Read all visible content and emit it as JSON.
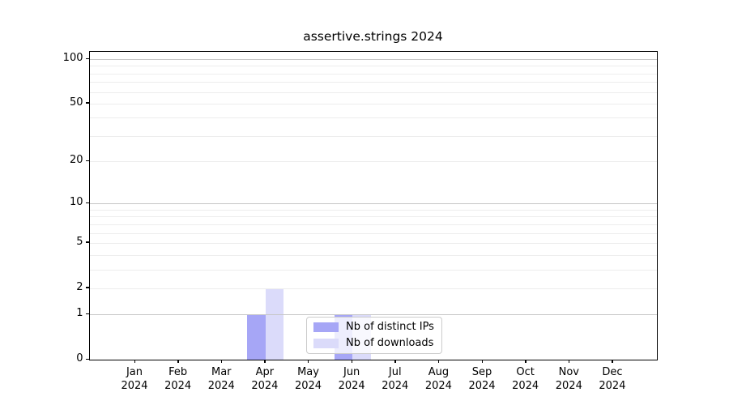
{
  "title": "assertive.strings 2024",
  "chart_data": {
    "type": "bar",
    "title": "assertive.strings 2024",
    "categories": [
      "Jan 2024",
      "Feb 2024",
      "Mar 2024",
      "Apr 2024",
      "May 2024",
      "Jun 2024",
      "Jul 2024",
      "Aug 2024",
      "Sep 2024",
      "Oct 2024",
      "Nov 2024",
      "Dec 2024"
    ],
    "series": [
      {
        "name": "Nb of distinct IPs",
        "color": "#a6a6f6",
        "values": [
          0,
          0,
          0,
          1,
          0,
          1,
          0,
          0,
          0,
          0,
          0,
          0
        ]
      },
      {
        "name": "Nb of downloads",
        "color": "#dbdbfa",
        "values": [
          0,
          0,
          0,
          2,
          0,
          1,
          0,
          0,
          0,
          0,
          0,
          0
        ]
      }
    ],
    "xlabel": "",
    "ylabel": "",
    "yscale": "log1p",
    "yticks": [
      0,
      1,
      2,
      5,
      10,
      20,
      50,
      100
    ],
    "minor_grid_values": [
      2,
      3,
      4,
      5,
      6,
      7,
      8,
      9,
      20,
      30,
      40,
      50,
      60,
      70,
      80,
      90
    ],
    "major_grid_values": [
      1,
      10,
      100
    ],
    "ylim": [
      0,
      112
    ],
    "grid": true,
    "legend_position": "inside lower center",
    "bar_grouping": "paired side-by-side centered on month tick"
  },
  "legend": {
    "items": [
      {
        "label": "Nb of distinct IPs",
        "color": "#a6a6f6"
      },
      {
        "label": "Nb of downloads",
        "color": "#dbdbfa"
      }
    ]
  },
  "colors": {
    "distinct_ips": "#a6a6f6",
    "downloads": "#dbdbfa",
    "axis": "#000000",
    "grid_minor": "#ededed",
    "grid_major": "#c6c6c6",
    "legend_border": "#cccccc"
  }
}
